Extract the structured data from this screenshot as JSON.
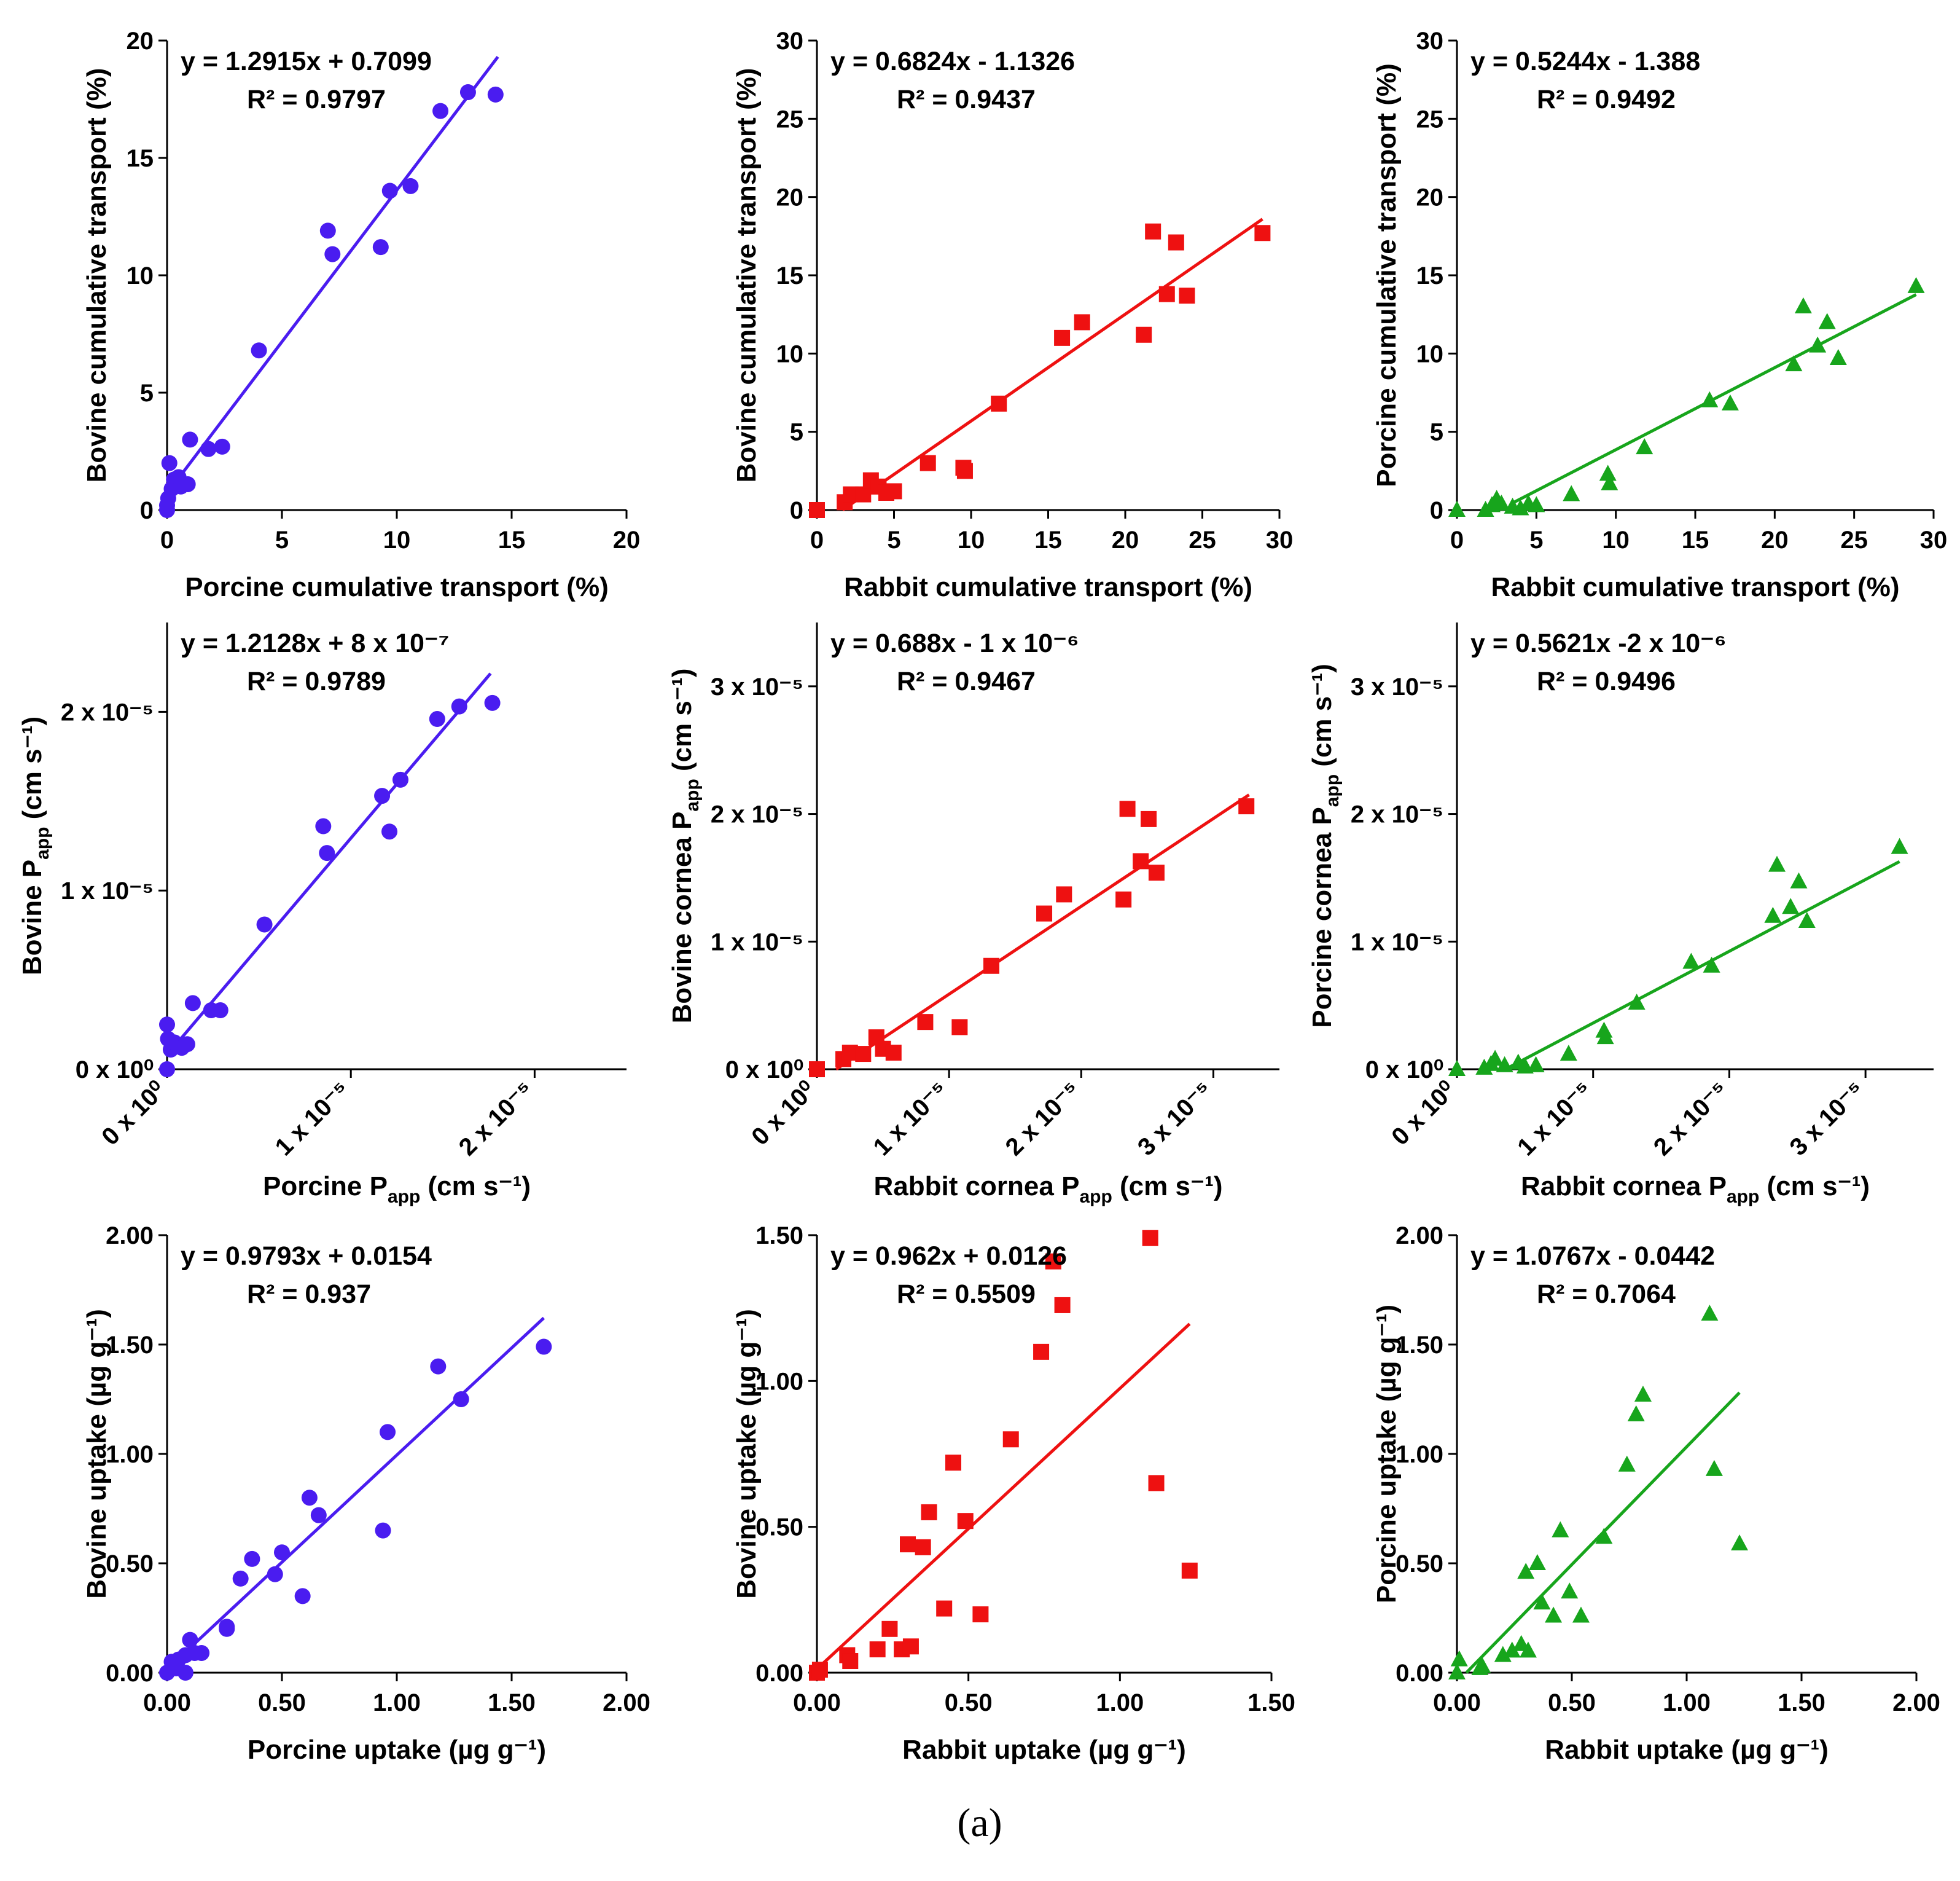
{
  "figure": {
    "caption": "(a)",
    "colors": {
      "blue": "#4a1cf0",
      "red": "#ee1111",
      "green": "#17a51c"
    }
  },
  "chart_data": [
    {
      "type": "scatter",
      "marker": "circle",
      "color": "#4a1cf0",
      "xlabel": "Porcine cumulative transport (%)",
      "ylabel": "Bovine cumulative transport (%)",
      "xlim": [
        0,
        20
      ],
      "ylim": [
        0,
        20
      ],
      "xticks": [
        0,
        5,
        10,
        15,
        20
      ],
      "yticks": [
        0,
        5,
        10,
        15,
        20
      ],
      "xtick_labels": [
        "0",
        "5",
        "10",
        "15",
        "20"
      ],
      "ytick_labels": [
        "0",
        "5",
        "10",
        "15",
        "20"
      ],
      "equation": "y = 1.2915x + 0.7099",
      "r2": "R² = 0.9797",
      "fit": {
        "slope": 1.2915,
        "intercept": 0.7099,
        "x_range": [
          0.0,
          14.4
        ]
      },
      "points": [
        [
          0.0,
          0.0
        ],
        [
          0.0,
          0.2
        ],
        [
          0.05,
          0.5
        ],
        [
          0.1,
          2.0
        ],
        [
          0.2,
          0.9
        ],
        [
          0.3,
          1.3
        ],
        [
          0.4,
          1.1
        ],
        [
          0.5,
          1.4
        ],
        [
          0.6,
          1.0
        ],
        [
          0.9,
          1.1
        ],
        [
          1.0,
          3.0
        ],
        [
          1.8,
          2.6
        ],
        [
          2.4,
          2.7
        ],
        [
          4.0,
          6.8
        ],
        [
          7.0,
          11.9
        ],
        [
          7.2,
          10.9
        ],
        [
          9.3,
          11.2
        ],
        [
          9.7,
          13.6
        ],
        [
          10.6,
          13.8
        ],
        [
          11.9,
          17.0
        ],
        [
          13.1,
          17.8
        ],
        [
          14.3,
          17.7
        ]
      ]
    },
    {
      "type": "scatter",
      "marker": "square",
      "color": "#ee1111",
      "xlabel": "Rabbit cumulative transport (%)",
      "ylabel": "Bovine cumulative transport (%)",
      "xlim": [
        0,
        30
      ],
      "ylim": [
        0,
        30
      ],
      "xticks": [
        0,
        5,
        10,
        15,
        20,
        25,
        30
      ],
      "yticks": [
        0,
        5,
        10,
        15,
        20,
        25,
        30
      ],
      "xtick_labels": [
        "0",
        "5",
        "10",
        "15",
        "20",
        "25",
        "30"
      ],
      "ytick_labels": [
        "0",
        "5",
        "10",
        "15",
        "20",
        "25",
        "30"
      ],
      "equation": "y = 0.6824x - 1.1326",
      "r2": "R² = 0.9437",
      "fit": {
        "slope": 0.6824,
        "intercept": -1.1326,
        "x_range": [
          1.66,
          28.9
        ]
      },
      "points": [
        [
          0.0,
          0.0
        ],
        [
          1.8,
          0.5
        ],
        [
          2.2,
          1.0
        ],
        [
          3.0,
          1.0
        ],
        [
          3.5,
          1.9
        ],
        [
          4.0,
          1.5
        ],
        [
          4.5,
          1.1
        ],
        [
          5.0,
          1.2
        ],
        [
          7.2,
          3.0
        ],
        [
          9.5,
          2.7
        ],
        [
          9.6,
          2.5
        ],
        [
          11.8,
          6.8
        ],
        [
          15.9,
          11.0
        ],
        [
          17.2,
          12.0
        ],
        [
          21.2,
          11.2
        ],
        [
          21.8,
          17.8
        ],
        [
          22.7,
          13.8
        ],
        [
          23.3,
          17.1
        ],
        [
          24.0,
          13.7
        ],
        [
          28.9,
          17.7
        ]
      ]
    },
    {
      "type": "scatter",
      "marker": "triangle",
      "color": "#17a51c",
      "xlabel": "Rabbit cumulative transport (%)",
      "ylabel": "Porcine cumulative transport (%)",
      "xlim": [
        0,
        30
      ],
      "ylim": [
        0,
        30
      ],
      "xticks": [
        0,
        5,
        10,
        15,
        20,
        25,
        30
      ],
      "yticks": [
        0,
        5,
        10,
        15,
        20,
        25,
        30
      ],
      "xtick_labels": [
        "0",
        "5",
        "10",
        "15",
        "20",
        "25",
        "30"
      ],
      "ytick_labels": [
        "0",
        "5",
        "10",
        "15",
        "20",
        "25",
        "30"
      ],
      "equation": "y = 0.5244x - 1.388",
      "r2": "R² = 0.9492",
      "fit": {
        "slope": 0.5244,
        "intercept": -1.388,
        "x_range": [
          3.6,
          28.9
        ]
      },
      "points": [
        [
          0.0,
          0.0
        ],
        [
          1.8,
          0.0
        ],
        [
          2.2,
          0.3
        ],
        [
          2.5,
          0.7
        ],
        [
          2.8,
          0.4
        ],
        [
          3.5,
          0.2
        ],
        [
          4.0,
          0.1
        ],
        [
          4.5,
          0.4
        ],
        [
          5.0,
          0.3
        ],
        [
          7.2,
          1.0
        ],
        [
          9.5,
          2.3
        ],
        [
          9.6,
          1.7
        ],
        [
          11.8,
          4.0
        ],
        [
          15.9,
          7.0
        ],
        [
          17.2,
          6.8
        ],
        [
          21.2,
          9.3
        ],
        [
          21.8,
          13.0
        ],
        [
          22.7,
          10.5
        ],
        [
          23.3,
          12.0
        ],
        [
          24.0,
          9.7
        ],
        [
          28.9,
          14.3
        ]
      ]
    },
    {
      "type": "scatter",
      "marker": "circle",
      "color": "#4a1cf0",
      "xlabel": "Porcine P_app (cm s⁻¹)",
      "xlabel_parts": {
        "pre": "Porcine P",
        "sub": "app",
        "post": " (cm s⁻¹)"
      },
      "ylabel": "Bovine P_app (cm s⁻¹)",
      "ylabel_parts": {
        "pre": "Bovine P",
        "sub": "app",
        "post": " (cm s⁻¹)"
      },
      "xlim": [
        0,
        2.5e-05
      ],
      "ylim": [
        0,
        2.5e-05
      ],
      "xticks": [
        0,
        1e-05,
        2e-05
      ],
      "yticks": [
        0,
        1e-05,
        2e-05
      ],
      "xtick_labels": [
        "0 x 10⁰",
        "1 x 10⁻⁵",
        "2 x 10⁻⁵"
      ],
      "ytick_labels": [
        "0 x 10⁰",
        "1 x 10⁻⁵",
        "2 x 10⁻⁵"
      ],
      "equation": "y = 1.2128x + 8 x 10⁻⁷",
      "r2": "R² = 0.9789",
      "fit": {
        "slope": 1.2128,
        "intercept": 8e-07,
        "x_range": [
          0.0,
          1.76e-05
        ]
      },
      "points": [
        [
          0.0,
          0.0
        ],
        [
          0.0,
          2.5e-06
        ],
        [
          5e-08,
          1.7e-06
        ],
        [
          2e-07,
          1.1e-06
        ],
        [
          4e-07,
          1.5e-06
        ],
        [
          8e-07,
          1.2e-06
        ],
        [
          1.1e-06,
          1.4e-06
        ],
        [
          1.4e-06,
          3.7e-06
        ],
        [
          2.4e-06,
          3.3e-06
        ],
        [
          2.9e-06,
          3.3e-06
        ],
        [
          5.3e-06,
          8.1e-06
        ],
        [
          8.5e-06,
          1.36e-05
        ],
        [
          8.7e-06,
          1.21e-05
        ],
        [
          1.17e-05,
          1.53e-05
        ],
        [
          1.21e-05,
          1.33e-05
        ],
        [
          1.27e-05,
          1.62e-05
        ],
        [
          1.47e-05,
          1.96e-05
        ],
        [
          1.59e-05,
          2.03e-05
        ],
        [
          1.77e-05,
          2.05e-05
        ]
      ]
    },
    {
      "type": "scatter",
      "marker": "square",
      "color": "#ee1111",
      "xlabel": "Rabbit cornea P_app (cm s⁻¹)",
      "xlabel_parts": {
        "pre": "Rabbit cornea P",
        "sub": "app",
        "post": " (cm s⁻¹)"
      },
      "ylabel": "Bovine cornea P_app (cm s⁻¹)",
      "ylabel_parts": {
        "pre": "Bovine cornea P",
        "sub": "app",
        "post": " (cm s⁻¹)"
      },
      "xlim": [
        0,
        3.5e-05
      ],
      "ylim": [
        0,
        3.5e-05
      ],
      "xticks": [
        0,
        1e-05,
        2e-05,
        3e-05
      ],
      "yticks": [
        0,
        1e-05,
        2e-05,
        3e-05
      ],
      "xtick_labels": [
        "0 x 10⁰",
        "1 x 10⁻⁵",
        "2 x 10⁻⁵",
        "3 x 10⁻⁵"
      ],
      "ytick_labels": [
        "0 x 10⁰",
        "1 x 10⁻⁵",
        "2 x 10⁻⁵",
        "3 x 10⁻⁵"
      ],
      "equation": "y = 0.688x - 1 x 10⁻⁶",
      "r2": "R² = 0.9467",
      "fit": {
        "slope": 0.688,
        "intercept": -1e-06,
        "x_range": [
          1.45e-06,
          3.27e-05
        ]
      },
      "points": [
        [
          0.0,
          0.0
        ],
        [
          2e-06,
          8e-07
        ],
        [
          2.5e-06,
          1.3e-06
        ],
        [
          3.5e-06,
          1.2e-06
        ],
        [
          4.5e-06,
          2.5e-06
        ],
        [
          5e-06,
          1.6e-06
        ],
        [
          5.8e-06,
          1.3e-06
        ],
        [
          8.2e-06,
          3.7e-06
        ],
        [
          1.08e-05,
          3.3e-06
        ],
        [
          1.32e-05,
          8.1e-06
        ],
        [
          1.72e-05,
          1.22e-05
        ],
        [
          1.87e-05,
          1.37e-05
        ],
        [
          2.32e-05,
          1.33e-05
        ],
        [
          2.35e-05,
          2.04e-05
        ],
        [
          2.45e-05,
          1.63e-05
        ],
        [
          2.51e-05,
          1.96e-05
        ],
        [
          2.57e-05,
          1.54e-05
        ],
        [
          3.25e-05,
          2.06e-05
        ]
      ]
    },
    {
      "type": "scatter",
      "marker": "triangle",
      "color": "#17a51c",
      "xlabel": "Rabbit cornea P_app (cm s⁻¹)",
      "xlabel_parts": {
        "pre": "Rabbit cornea P",
        "sub": "app",
        "post": " (cm s⁻¹)"
      },
      "ylabel": "Porcine cornea P_app (cm s⁻¹)",
      "ylabel_parts": {
        "pre": "Porcine cornea P",
        "sub": "app",
        "post": " (cm s⁻¹)"
      },
      "xlim": [
        0,
        3.5e-05
      ],
      "ylim": [
        0,
        3.5e-05
      ],
      "xticks": [
        0,
        1e-05,
        2e-05,
        3e-05
      ],
      "yticks": [
        0,
        1e-05,
        2e-05,
        3e-05
      ],
      "xtick_labels": [
        "0 x 10⁰",
        "1 x 10⁻⁵",
        "2 x 10⁻⁵",
        "3 x 10⁻⁵"
      ],
      "ytick_labels": [
        "0 x 10⁰",
        "1 x 10⁻⁵",
        "2 x 10⁻⁵",
        "3 x 10⁻⁵"
      ],
      "equation": "y = 0.5621x -2 x 10⁻⁶",
      "r2": "R² = 0.9496",
      "fit": {
        "slope": 0.5621,
        "intercept": -2e-06,
        "x_range": [
          3.56e-06,
          3.25e-05
        ]
      },
      "points": [
        [
          0.0,
          0.0
        ],
        [
          2e-06,
          1e-07
        ],
        [
          2.5e-06,
          4e-07
        ],
        [
          2.8e-06,
          8e-07
        ],
        [
          3.5e-06,
          3e-07
        ],
        [
          4.5e-06,
          5e-07
        ],
        [
          5e-06,
          2e-07
        ],
        [
          5.8e-06,
          3e-07
        ],
        [
          8.2e-06,
          1.2e-06
        ],
        [
          1.08e-05,
          3e-06
        ],
        [
          1.09e-05,
          2.5e-06
        ],
        [
          1.32e-05,
          5.2e-06
        ],
        [
          1.72e-05,
          8.4e-06
        ],
        [
          1.87e-05,
          8.1e-06
        ],
        [
          2.32e-05,
          1.2e-05
        ],
        [
          2.35e-05,
          1.6e-05
        ],
        [
          2.45e-05,
          1.27e-05
        ],
        [
          2.51e-05,
          1.47e-05
        ],
        [
          2.57e-05,
          1.16e-05
        ],
        [
          3.25e-05,
          1.74e-05
        ]
      ]
    },
    {
      "type": "scatter",
      "marker": "circle",
      "color": "#4a1cf0",
      "xlabel": "Porcine uptake (µg g⁻¹)",
      "ylabel": "Bovine uptake (µg g⁻¹)",
      "xlim": [
        0,
        2.0
      ],
      "ylim": [
        0,
        2.0
      ],
      "xticks": [
        0,
        0.5,
        1.0,
        1.5,
        2.0
      ],
      "yticks": [
        0,
        0.5,
        1.0,
        1.5,
        2.0
      ],
      "xtick_labels": [
        "0.00",
        "0.50",
        "1.00",
        "1.50",
        "2.00"
      ],
      "ytick_labels": [
        "0.00",
        "0.50",
        "1.00",
        "1.50",
        "2.00"
      ],
      "equation": "y = 0.9793x + 0.0154",
      "r2": "R² = 0.937",
      "fit": {
        "slope": 0.9793,
        "intercept": 0.0154,
        "x_range": [
          0.0,
          1.64
        ]
      },
      "points": [
        [
          0.0,
          0.0
        ],
        [
          0.02,
          0.05
        ],
        [
          0.04,
          0.02
        ],
        [
          0.05,
          0.06
        ],
        [
          0.08,
          0.08
        ],
        [
          0.08,
          0.0
        ],
        [
          0.1,
          0.15
        ],
        [
          0.12,
          0.09
        ],
        [
          0.15,
          0.09
        ],
        [
          0.26,
          0.21
        ],
        [
          0.26,
          0.2
        ],
        [
          0.32,
          0.43
        ],
        [
          0.37,
          0.52
        ],
        [
          0.47,
          0.45
        ],
        [
          0.5,
          0.55
        ],
        [
          0.59,
          0.35
        ],
        [
          0.62,
          0.8
        ],
        [
          0.66,
          0.72
        ],
        [
          0.94,
          0.65
        ],
        [
          0.96,
          1.1
        ],
        [
          1.18,
          1.4
        ],
        [
          1.28,
          1.25
        ],
        [
          1.64,
          1.49
        ]
      ]
    },
    {
      "type": "scatter",
      "marker": "square",
      "color": "#ee1111",
      "xlabel": "Rabbit uptake (µg g⁻¹)",
      "ylabel": "Bovine uptake (µg g⁻¹)",
      "xlim": [
        0,
        1.5
      ],
      "ylim": [
        0,
        1.5
      ],
      "xticks": [
        0,
        0.5,
        1.0,
        1.5
      ],
      "yticks": [
        0,
        0.5,
        1.0,
        1.5
      ],
      "xtick_labels": [
        "0.00",
        "0.50",
        "1.00",
        "1.50"
      ],
      "ytick_labels": [
        "0.00",
        "0.50",
        "1.00",
        "1.50"
      ],
      "equation": "y = 0.962x + 0.0126",
      "r2": "R² = 0.5509",
      "fit": {
        "slope": 0.962,
        "intercept": 0.0126,
        "x_range": [
          0.0,
          1.23
        ]
      },
      "points": [
        [
          0.0,
          0.0
        ],
        [
          0.01,
          0.01
        ],
        [
          0.1,
          0.06
        ],
        [
          0.11,
          0.04
        ],
        [
          0.2,
          0.08
        ],
        [
          0.24,
          0.15
        ],
        [
          0.28,
          0.08
        ],
        [
          0.3,
          0.44
        ],
        [
          0.31,
          0.09
        ],
        [
          0.35,
          0.43
        ],
        [
          0.37,
          0.55
        ],
        [
          0.42,
          0.22
        ],
        [
          0.45,
          0.72
        ],
        [
          0.49,
          0.52
        ],
        [
          0.54,
          0.2
        ],
        [
          0.64,
          0.8
        ],
        [
          0.74,
          1.1
        ],
        [
          0.78,
          1.41
        ],
        [
          0.81,
          1.26
        ],
        [
          1.1,
          1.49
        ],
        [
          1.12,
          0.65
        ],
        [
          1.23,
          0.35
        ]
      ]
    },
    {
      "type": "scatter",
      "marker": "triangle",
      "color": "#17a51c",
      "xlabel": "Rabbit uptake (µg g⁻¹)",
      "ylabel": "Porcine uptake (µg g⁻¹)",
      "xlim": [
        0,
        2.0
      ],
      "ylim": [
        0,
        2.0
      ],
      "xticks": [
        0,
        0.5,
        1.0,
        1.5,
        2.0
      ],
      "yticks": [
        0,
        0.5,
        1.0,
        1.5,
        2.0
      ],
      "xtick_labels": [
        "0.00",
        "0.50",
        "1.00",
        "1.50",
        "2.00"
      ],
      "ytick_labels": [
        "0.00",
        "0.50",
        "1.00",
        "1.50",
        "2.00"
      ],
      "equation": "y = 1.0767x - 0.0442",
      "r2": "R² = 0.7064",
      "fit": {
        "slope": 1.0767,
        "intercept": -0.0442,
        "x_range": [
          0.041,
          1.23
        ]
      },
      "points": [
        [
          0.0,
          0.0
        ],
        [
          0.01,
          0.06
        ],
        [
          0.1,
          0.02
        ],
        [
          0.11,
          0.03
        ],
        [
          0.2,
          0.08
        ],
        [
          0.24,
          0.1
        ],
        [
          0.28,
          0.13
        ],
        [
          0.3,
          0.46
        ],
        [
          0.31,
          0.1
        ],
        [
          0.35,
          0.5
        ],
        [
          0.37,
          0.32
        ],
        [
          0.42,
          0.26
        ],
        [
          0.45,
          0.65
        ],
        [
          0.49,
          0.37
        ],
        [
          0.54,
          0.26
        ],
        [
          0.64,
          0.62
        ],
        [
          0.74,
          0.95
        ],
        [
          0.78,
          1.18
        ],
        [
          0.81,
          1.27
        ],
        [
          1.1,
          1.64
        ],
        [
          1.12,
          0.93
        ],
        [
          1.23,
          0.59
        ]
      ]
    }
  ]
}
